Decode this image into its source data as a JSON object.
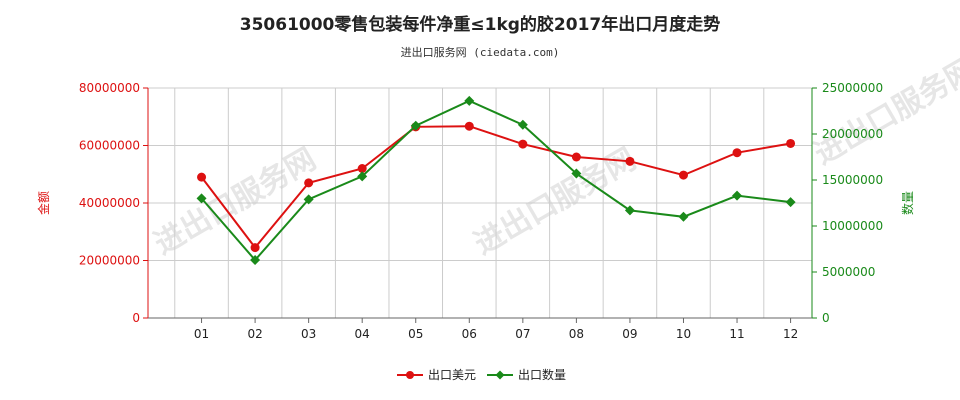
{
  "title": "35061000零售包装每件净重≤1kg的胶2017年出口月度走势",
  "subtitle": "进出口服务网 (ciedata.com)",
  "watermark": "进出口服务网",
  "colors": {
    "left": "#dd1111",
    "right": "#1a8a1a",
    "grid": "#cccccc",
    "axis": "#666666"
  },
  "chart_data": {
    "type": "line",
    "categories": [
      "01",
      "02",
      "03",
      "04",
      "05",
      "06",
      "07",
      "08",
      "09",
      "10",
      "11",
      "12"
    ],
    "y_left": {
      "label": "金额",
      "range": [
        0,
        80000000
      ],
      "ticks": [
        "0",
        "20000000",
        "40000000",
        "60000000",
        "80000000"
      ]
    },
    "y_right": {
      "label": "数量",
      "range": [
        0,
        25000000
      ],
      "ticks": [
        "0",
        "5000000",
        "10000000",
        "15000000",
        "20000000",
        "25000000"
      ]
    },
    "series": [
      {
        "name": "出口美元",
        "axis": "left",
        "values": [
          49000000,
          24500000,
          47000000,
          52000000,
          66500000,
          66700000,
          60500000,
          56000000,
          54500000,
          49700000,
          57500000,
          60700000
        ]
      },
      {
        "name": "出口数量",
        "axis": "right",
        "values": [
          13000000,
          6300000,
          12900000,
          15400000,
          20900000,
          23600000,
          21000000,
          15700000,
          11700000,
          11000000,
          13300000,
          12600000
        ]
      }
    ],
    "grid": true,
    "legend": "bottom-center"
  }
}
